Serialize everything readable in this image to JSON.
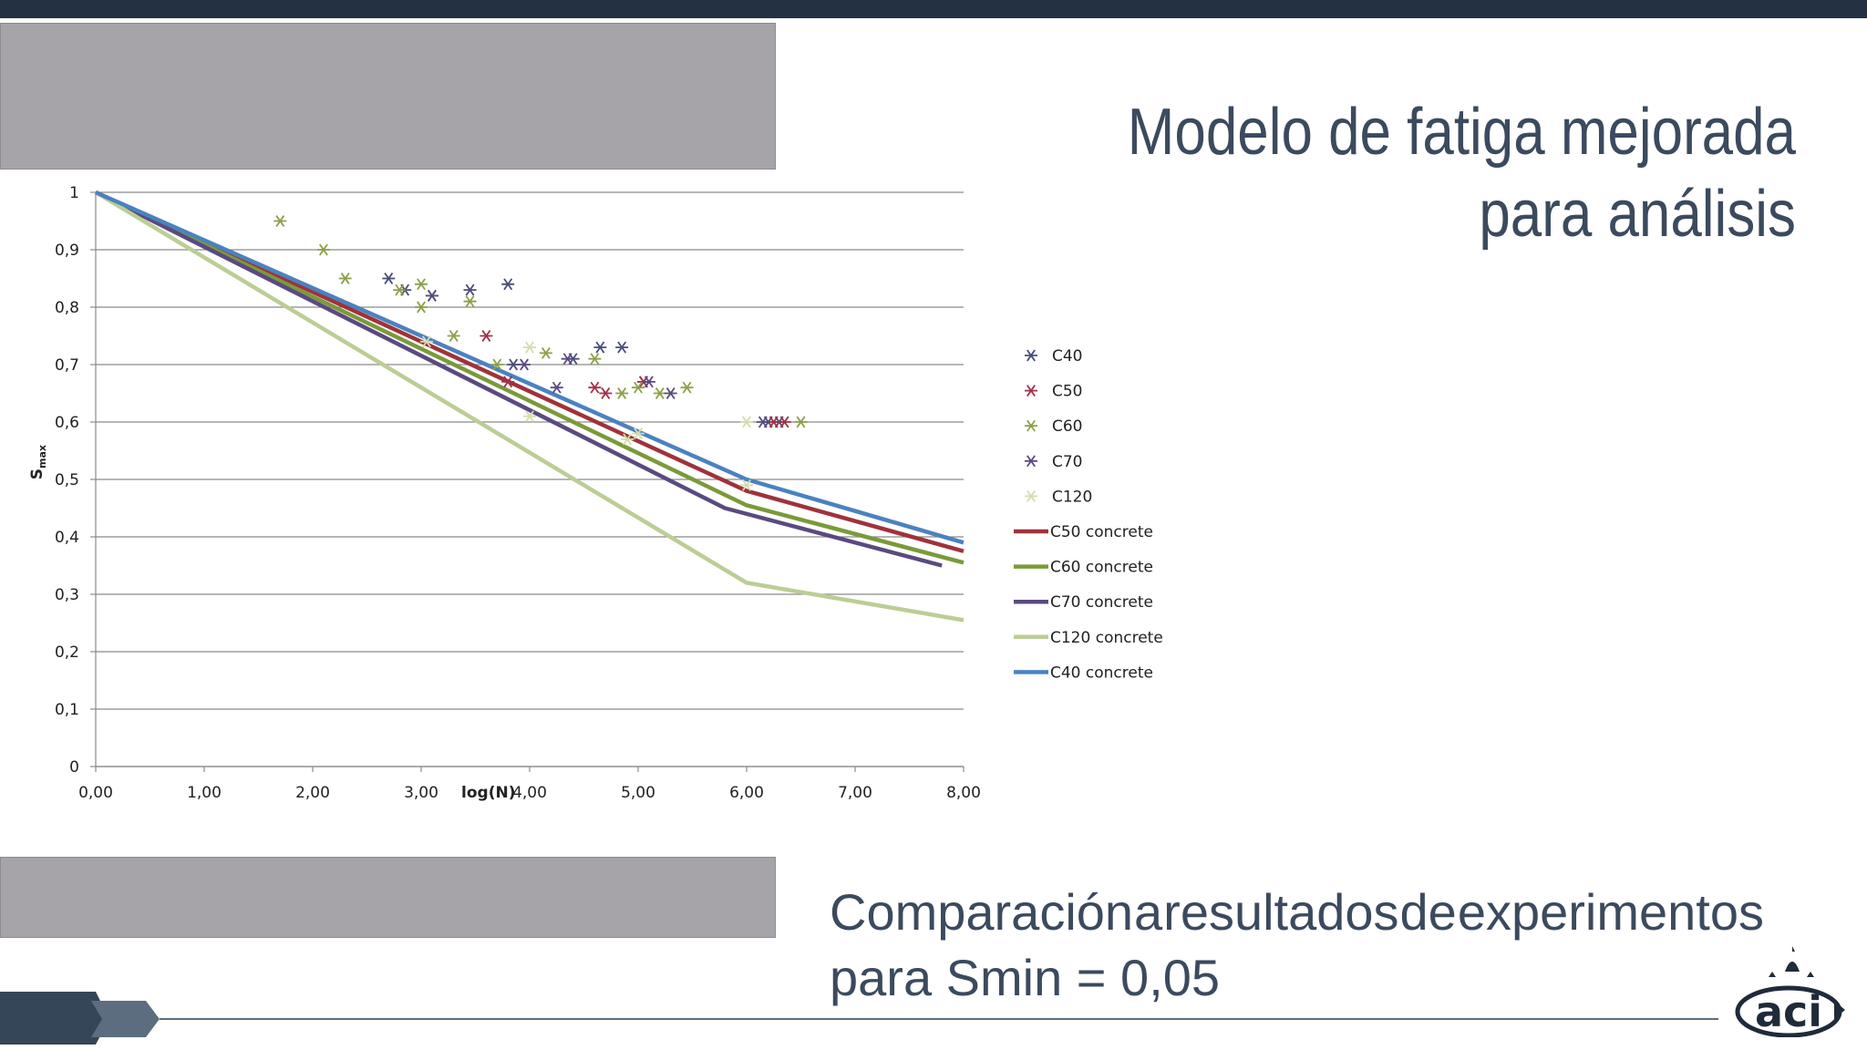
{
  "slide": {
    "title": "Modelo de fatiga mejorada para análisis",
    "subtitle_line1": [
      "Comparación",
      "a",
      "resultados",
      "de",
      "experimentos"
    ],
    "subtitle_line2": "para Smin = 0,05",
    "logo_text": "aci"
  },
  "colors": {
    "top_bar": "#233142",
    "title_text": "#3b4a5e",
    "panel_gray": "#a6a4a8"
  },
  "chart_data": {
    "type": "line",
    "title": "",
    "xlabel": "log(N)",
    "ylabel": "S_max",
    "xlim": [
      0,
      8
    ],
    "ylim": [
      0,
      1
    ],
    "x_ticks": [
      "0,00",
      "1,00",
      "2,00",
      "3,00",
      "4,00",
      "5,00",
      "6,00",
      "7,00",
      "8,00"
    ],
    "y_ticks": [
      "0",
      "0,1",
      "0,2",
      "0,3",
      "0,4",
      "0,5",
      "0,6",
      "0,7",
      "0,8",
      "0,9",
      "1"
    ],
    "grid": "horizontal",
    "legend_position": "right",
    "series": [
      {
        "name": "C40",
        "kind": "scatter",
        "color": "#4a4e78",
        "points": [
          [
            2.7,
            0.85
          ],
          [
            2.85,
            0.83
          ],
          [
            3.1,
            0.82
          ],
          [
            3.45,
            0.83
          ],
          [
            3.8,
            0.84
          ],
          [
            4.4,
            0.71
          ],
          [
            4.65,
            0.73
          ],
          [
            4.85,
            0.73
          ],
          [
            3.85,
            0.7
          ],
          [
            6.2,
            0.6
          ],
          [
            6.3,
            0.6
          ],
          [
            5.05,
            0.67
          ]
        ]
      },
      {
        "name": "C50",
        "kind": "scatter",
        "color": "#a0324a",
        "points": [
          [
            3.6,
            0.75
          ],
          [
            3.8,
            0.67
          ],
          [
            4.7,
            0.65
          ],
          [
            5.05,
            0.67
          ],
          [
            6.25,
            0.6
          ],
          [
            6.35,
            0.6
          ],
          [
            4.6,
            0.66
          ]
        ]
      },
      {
        "name": "C60",
        "kind": "scatter",
        "color": "#8ca04a",
        "points": [
          [
            1.7,
            0.95
          ],
          [
            2.1,
            0.9
          ],
          [
            2.3,
            0.85
          ],
          [
            2.8,
            0.83
          ],
          [
            3.0,
            0.84
          ],
          [
            3.0,
            0.8
          ],
          [
            3.45,
            0.81
          ],
          [
            3.3,
            0.75
          ],
          [
            3.7,
            0.7
          ],
          [
            4.15,
            0.72
          ],
          [
            4.6,
            0.71
          ],
          [
            4.85,
            0.65
          ],
          [
            5.2,
            0.65
          ],
          [
            5.45,
            0.66
          ],
          [
            6.5,
            0.6
          ],
          [
            5.0,
            0.66
          ]
        ]
      },
      {
        "name": "C70",
        "kind": "scatter",
        "color": "#5a4a80",
        "points": [
          [
            3.1,
            0.82
          ],
          [
            3.95,
            0.7
          ],
          [
            4.25,
            0.66
          ],
          [
            5.1,
            0.67
          ],
          [
            5.3,
            0.65
          ],
          [
            6.15,
            0.6
          ],
          [
            4.35,
            0.71
          ]
        ]
      },
      {
        "name": "C120",
        "kind": "scatter",
        "color": "#d6dcaa",
        "points": [
          [
            3.05,
            0.74
          ],
          [
            4.0,
            0.73
          ],
          [
            4.0,
            0.61
          ],
          [
            4.9,
            0.57
          ],
          [
            6.0,
            0.6
          ],
          [
            6.0,
            0.49
          ],
          [
            5.0,
            0.58
          ]
        ]
      },
      {
        "name": "C50 concrete",
        "kind": "line",
        "color": "#a0323a",
        "points": [
          [
            0,
            1
          ],
          [
            6,
            0.48
          ],
          [
            8,
            0.375
          ]
        ]
      },
      {
        "name": "C60 concrete",
        "kind": "line",
        "color": "#7a9a3a",
        "points": [
          [
            0,
            1
          ],
          [
            6,
            0.455
          ],
          [
            8,
            0.355
          ]
        ]
      },
      {
        "name": "C70 concrete",
        "kind": "line",
        "color": "#5a4a80",
        "points": [
          [
            0,
            1
          ],
          [
            5.8,
            0.45
          ],
          [
            7.8,
            0.35
          ]
        ]
      },
      {
        "name": "C120 concrete",
        "kind": "line",
        "color": "#bccd96",
        "points": [
          [
            0,
            1
          ],
          [
            6,
            0.32
          ],
          [
            8,
            0.255
          ]
        ]
      },
      {
        "name": "C40 concrete",
        "kind": "line",
        "color": "#4a82c0",
        "points": [
          [
            0,
            1
          ],
          [
            6,
            0.5
          ],
          [
            8,
            0.39
          ]
        ]
      }
    ]
  }
}
